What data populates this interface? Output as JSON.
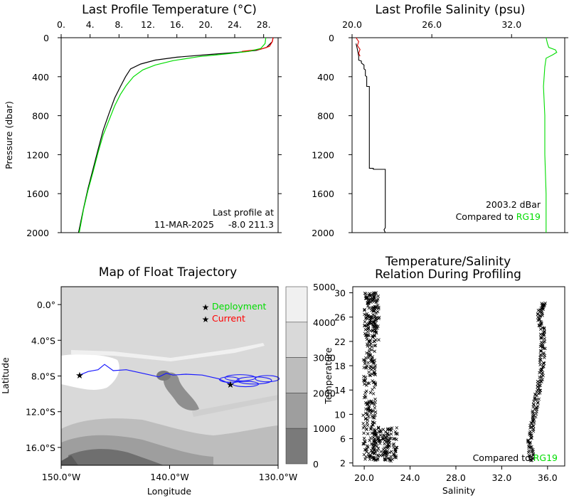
{
  "chart_data": [
    {
      "id": "temperature_profile",
      "type": "line",
      "title": "Last Profile Temperature (°C)",
      "ylabel": "Pressure (dbar)",
      "xlim": [
        0,
        30
      ],
      "ylim": [
        2000,
        0
      ],
      "x_ticks": [
        "0.",
        "4.",
        "8.",
        "12.",
        "16.",
        "20.",
        "24.",
        "28."
      ],
      "x_tick_values": [
        0,
        4,
        8,
        12,
        16,
        20,
        24,
        28
      ],
      "y_ticks": [
        "0",
        "400",
        "800",
        "1200",
        "1600",
        "2000"
      ],
      "y_tick_values": [
        0,
        400,
        800,
        1200,
        1600,
        2000
      ],
      "annotation": {
        "line1": "Last profile at",
        "line2": "11-MAR-2025     -8.0 211.3"
      },
      "series": [
        {
          "color": "#000000",
          "points": [
            [
              29.3,
              0
            ],
            [
              29.2,
              40
            ],
            [
              28.4,
              100
            ],
            [
              27.0,
              130
            ],
            [
              24.5,
              150
            ],
            [
              20.0,
              175
            ],
            [
              16.0,
              200
            ],
            [
              13.0,
              230
            ],
            [
              11.0,
              270
            ],
            [
              9.6,
              320
            ],
            [
              8.9,
              400
            ],
            [
              8.2,
              500
            ],
            [
              7.4,
              620
            ],
            [
              6.6,
              780
            ],
            [
              5.8,
              950
            ],
            [
              5.1,
              1150
            ],
            [
              4.4,
              1350
            ],
            [
              3.7,
              1550
            ],
            [
              3.1,
              1750
            ],
            [
              2.4,
              2000
            ]
          ]
        },
        {
          "color": "#ff0000",
          "points": [
            [
              29.3,
              0
            ],
            [
              29.2,
              40
            ],
            [
              28.8,
              90
            ],
            [
              27.5,
              120
            ],
            [
              25.0,
              140
            ]
          ]
        },
        {
          "color": "#00dd00",
          "points": [
            [
              28.3,
              0
            ],
            [
              28.2,
              60
            ],
            [
              27.6,
              110
            ],
            [
              26.0,
              140
            ],
            [
              23.0,
              165
            ],
            [
              19.0,
              195
            ],
            [
              15.5,
              235
            ],
            [
              13.0,
              280
            ],
            [
              11.3,
              330
            ],
            [
              10.0,
              400
            ],
            [
              9.0,
              490
            ],
            [
              8.2,
              580
            ],
            [
              7.4,
              700
            ],
            [
              6.6,
              850
            ],
            [
              5.8,
              1000
            ],
            [
              5.1,
              1180
            ],
            [
              4.4,
              1380
            ],
            [
              3.7,
              1570
            ],
            [
              3.1,
              1760
            ],
            [
              2.5,
              2000
            ]
          ]
        }
      ]
    },
    {
      "id": "salinity_profile",
      "type": "line",
      "title": "Last Profile Salinity (psu)",
      "xlim": [
        20,
        36
      ],
      "ylim": [
        2000,
        0
      ],
      "x_ticks": [
        "20.0",
        "26.0",
        "32.0"
      ],
      "x_tick_values": [
        20,
        26,
        32
      ],
      "y_ticks": [
        "0",
        "400",
        "800",
        "1200",
        "1600",
        "2000"
      ],
      "y_tick_values": [
        0,
        400,
        800,
        1200,
        1600,
        2000
      ],
      "annotation": {
        "line1": "2003.2 dBar",
        "line2_prefix": "Compared to ",
        "line2_highlight": "RG19"
      },
      "series": [
        {
          "color": "#000000",
          "points": [
            [
              20.3,
              60
            ],
            [
              20.4,
              120
            ],
            [
              20.5,
              190
            ],
            [
              20.5,
              230
            ],
            [
              20.7,
              240
            ],
            [
              20.7,
              260
            ],
            [
              20.9,
              280
            ],
            [
              20.9,
              320
            ],
            [
              21.0,
              330
            ],
            [
              21.0,
              390
            ],
            [
              21.1,
              400
            ],
            [
              21.1,
              500
            ],
            [
              21.3,
              500
            ],
            [
              21.3,
              1340
            ],
            [
              21.6,
              1340
            ],
            [
              21.6,
              1350
            ],
            [
              22.5,
              1350
            ],
            [
              22.5,
              1950
            ],
            [
              22.4,
              1970
            ],
            [
              22.5,
              2000
            ]
          ]
        },
        {
          "color": "#dd0000",
          "points": [
            [
              20.3,
              0
            ],
            [
              20.5,
              40
            ],
            [
              20.4,
              80
            ],
            [
              20.6,
              120
            ],
            [
              20.5,
              160
            ],
            [
              20.6,
              190
            ]
          ]
        },
        {
          "color": "#00dd00",
          "points": [
            [
              34.6,
              0
            ],
            [
              34.7,
              60
            ],
            [
              34.8,
              100
            ],
            [
              35.3,
              125
            ],
            [
              35.4,
              150
            ],
            [
              35.1,
              175
            ],
            [
              34.6,
              210
            ],
            [
              34.5,
              300
            ],
            [
              34.4,
              500
            ],
            [
              34.5,
              800
            ],
            [
              34.5,
              1200
            ],
            [
              34.6,
              1600
            ],
            [
              34.6,
              2000
            ]
          ]
        }
      ]
    },
    {
      "id": "trajectory_map",
      "type": "heatmap",
      "title": "Map of Float Trajectory",
      "xlabel": "Longitude",
      "ylabel": "Latitude",
      "xlim": [
        -150,
        -130
      ],
      "ylim": [
        -18,
        2
      ],
      "x_ticks": [
        "150.0°W",
        "140.0°W",
        "130.0°W"
      ],
      "x_tick_values": [
        -150,
        -140,
        -130
      ],
      "y_ticks": [
        "0.0°",
        "4.0°S",
        "8.0°S",
        "12.0°S",
        "16.0°S"
      ],
      "y_tick_values": [
        0,
        -4,
        -8,
        -12,
        -16
      ],
      "colorbar_ticks": [
        "5000",
        "4000",
        "3000",
        "2000",
        "1000",
        "0"
      ],
      "colorbar_values": [
        5000,
        4000,
        3000,
        2000,
        1000,
        0
      ],
      "legend": [
        {
          "label": "Deployment",
          "color": "#00dd00"
        },
        {
          "label": "Current",
          "color": "#ff0000"
        }
      ],
      "deployment": {
        "lon": -134.4,
        "lat": -8.9
      },
      "current": {
        "lon": -148.3,
        "lat": -7.9
      },
      "track": [
        [
          -134.4,
          -8.9
        ],
        [
          -135.5,
          -8.3
        ],
        [
          -137.0,
          -7.9
        ],
        [
          -138.5,
          -7.8
        ],
        [
          -139.7,
          -7.9
        ],
        [
          -140.3,
          -7.7
        ],
        [
          -141.0,
          -8.1
        ],
        [
          -142.5,
          -7.7
        ],
        [
          -144.0,
          -7.3
        ],
        [
          -145.2,
          -7.4
        ],
        [
          -146.0,
          -6.7
        ],
        [
          -146.6,
          -7.3
        ],
        [
          -147.5,
          -7.5
        ],
        [
          -148.3,
          -7.9
        ]
      ],
      "loops": [
        [
          -133.5,
          -8.2,
          1.4,
          0.35
        ],
        [
          -132.2,
          -8.5,
          1.6,
          0.4
        ],
        [
          -131.0,
          -8.3,
          1.1,
          0.35
        ],
        [
          -133.0,
          -8.9,
          1.2,
          0.3
        ],
        [
          -134.5,
          -8.4,
          0.9,
          0.3
        ]
      ]
    },
    {
      "id": "ts_diagram",
      "type": "scatter",
      "title": "Temperature/Salinity",
      "subtitle": "Relation During Profiling",
      "xlabel": "Salinity",
      "ylabel": "Temperature",
      "xlim": [
        19,
        37.5
      ],
      "ylim": [
        1.5,
        31
      ],
      "x_ticks": [
        "20.0",
        "24.0",
        "28.0",
        "32.0",
        "36.0"
      ],
      "x_tick_values": [
        20,
        24,
        28,
        32,
        36
      ],
      "y_ticks": [
        "2",
        "6",
        "10",
        "14",
        "18",
        "22",
        "26",
        "30"
      ],
      "y_tick_values": [
        2,
        6,
        10,
        14,
        18,
        22,
        26,
        30
      ],
      "annotation": {
        "prefix": "Compared to ",
        "highlight": "RG19"
      },
      "ts_curve": [
        [
          34.6,
          2.3
        ],
        [
          34.55,
          4
        ],
        [
          34.5,
          6
        ],
        [
          34.6,
          8
        ],
        [
          34.8,
          10
        ],
        [
          35.0,
          12
        ],
        [
          35.2,
          14
        ],
        [
          35.4,
          16
        ],
        [
          35.5,
          18
        ],
        [
          35.6,
          20
        ],
        [
          35.6,
          22
        ],
        [
          35.5,
          24
        ],
        [
          35.3,
          26
        ],
        [
          35.4,
          27.5
        ],
        [
          35.7,
          28.3
        ]
      ],
      "clusters": [
        {
          "smin": 20.0,
          "smax": 21.3,
          "tmin": 22,
          "tmax": 30,
          "n": 160
        },
        {
          "smin": 19.9,
          "smax": 21.0,
          "tmin": 2.5,
          "tmax": 22,
          "n": 190
        },
        {
          "smin": 20.8,
          "smax": 22.9,
          "tmin": 2.3,
          "tmax": 8,
          "n": 150
        }
      ]
    }
  ],
  "colors": {
    "accent_green": "#00dd00",
    "accent_red": "#ff0000",
    "track_blue": "#1a1aff"
  }
}
